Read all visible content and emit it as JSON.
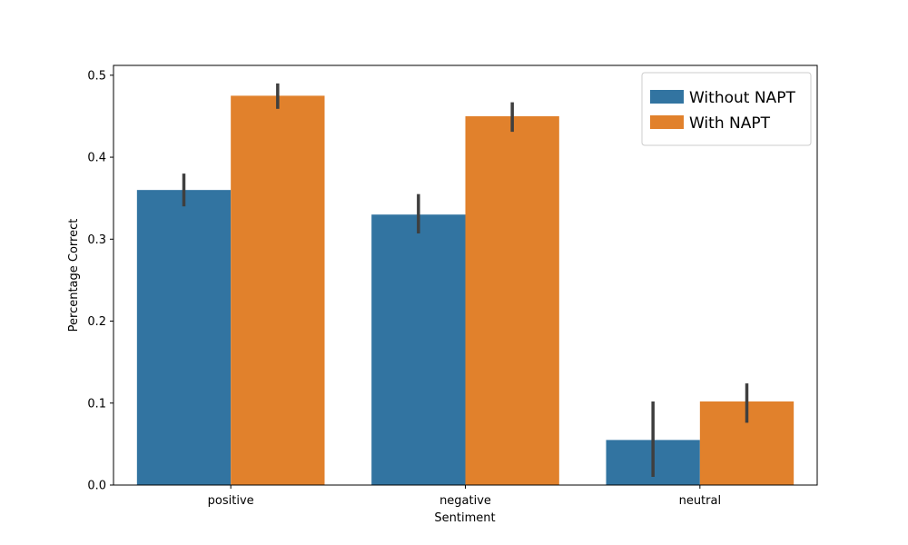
{
  "chart_data": {
    "type": "bar",
    "title": "",
    "xlabel": "Sentiment",
    "ylabel": "Percentage Correct",
    "categories": [
      "positive",
      "negative",
      "neutral"
    ],
    "ylim": [
      0,
      0.512
    ],
    "yticks": [
      {
        "value": 0.0,
        "label": "0.0"
      },
      {
        "value": 0.1,
        "label": "0.1"
      },
      {
        "value": 0.2,
        "label": "0.2"
      },
      {
        "value": 0.3,
        "label": "0.3"
      },
      {
        "value": 0.4,
        "label": "0.4"
      },
      {
        "value": 0.5,
        "label": "0.5"
      }
    ],
    "grid": false,
    "legend_position": "top-right",
    "series": [
      {
        "name": "Without NAPT",
        "color": "#3274a1",
        "values": [
          0.36,
          0.33,
          0.055
        ],
        "error_low": [
          0.34,
          0.307,
          0.01
        ],
        "error_high": [
          0.38,
          0.355,
          0.102
        ]
      },
      {
        "name": "With NAPT",
        "color": "#e1812c",
        "values": [
          0.475,
          0.45,
          0.102
        ],
        "error_low": [
          0.459,
          0.431,
          0.076
        ],
        "error_high": [
          0.49,
          0.467,
          0.124
        ]
      }
    ],
    "error_bar_color": "#3f3f3f"
  }
}
